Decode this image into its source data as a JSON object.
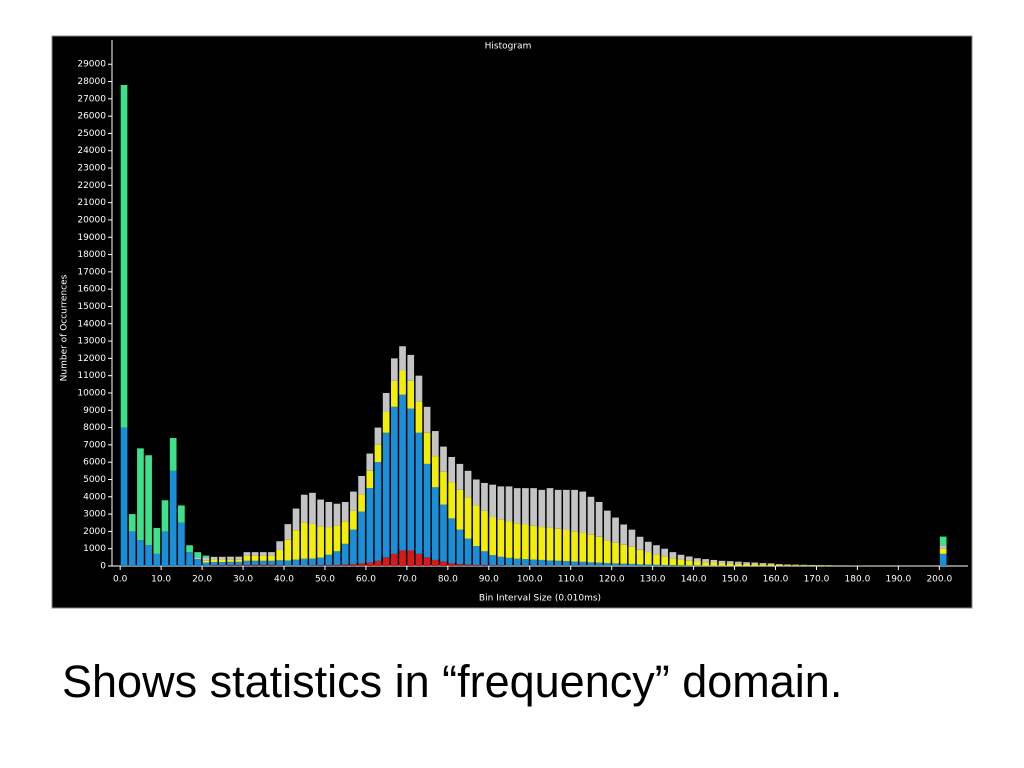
{
  "chart_data": {
    "type": "histogram",
    "title": "Histogram",
    "xlabel": "Bin Interval Size (0.010ms)",
    "ylabel": "Number of Occurrences",
    "bins": [
      0,
      2,
      4,
      6,
      8,
      10,
      12,
      14,
      16,
      18,
      20,
      22,
      24,
      26,
      28,
      30,
      32,
      34,
      36,
      38,
      40,
      42,
      44,
      46,
      48,
      50,
      52,
      54,
      56,
      58,
      60,
      62,
      64,
      66,
      68,
      70,
      72,
      74,
      76,
      78,
      80,
      82,
      84,
      86,
      88,
      90,
      92,
      94,
      96,
      98,
      100,
      102,
      104,
      106,
      108,
      110,
      112,
      114,
      116,
      118,
      120,
      122,
      124,
      126,
      128,
      130,
      132,
      134,
      136,
      138,
      140,
      142,
      144,
      146,
      148,
      150,
      152,
      154,
      156,
      158,
      160,
      162,
      164,
      166,
      168,
      170,
      172,
      174,
      176,
      178,
      180,
      182,
      184,
      186,
      188,
      190,
      192,
      194,
      196,
      198,
      200,
      202
    ],
    "series": [
      {
        "color": "#d41a1a",
        "values": [
          0,
          0,
          0,
          0,
          0,
          0,
          0,
          0,
          0,
          0,
          0,
          30,
          30,
          40,
          40,
          50,
          50,
          50,
          50,
          30,
          20,
          20,
          20,
          30,
          40,
          50,
          50,
          80,
          100,
          150,
          200,
          300,
          500,
          700,
          900,
          900,
          700,
          500,
          350,
          250,
          150,
          100,
          80,
          50,
          50,
          30,
          30,
          20,
          20,
          20,
          20,
          20,
          20,
          20,
          20,
          20,
          20,
          10,
          10,
          10,
          10,
          10,
          10,
          0,
          0,
          0,
          0,
          0,
          0,
          0,
          0,
          0,
          0,
          0,
          0,
          0,
          0,
          0,
          0,
          0,
          0,
          0,
          0,
          0,
          0,
          0,
          0,
          0,
          0,
          0,
          0,
          0,
          0,
          0,
          0,
          0,
          0,
          0,
          0,
          0,
          0
        ]
      },
      {
        "color": "#1a8fd8",
        "values": [
          8000,
          2000,
          1500,
          1200,
          700,
          2000,
          5500,
          2500,
          800,
          400,
          200,
          200,
          200,
          200,
          200,
          250,
          250,
          250,
          250,
          300,
          300,
          350,
          400,
          400,
          450,
          600,
          800,
          1200,
          2000,
          3000,
          4300,
          5700,
          7200,
          8500,
          9000,
          8200,
          7000,
          5400,
          4200,
          3300,
          2600,
          2000,
          1500,
          1100,
          800,
          600,
          500,
          450,
          400,
          380,
          350,
          330,
          300,
          280,
          260,
          240,
          220,
          200,
          180,
          160,
          140,
          120,
          110,
          90,
          80,
          70,
          60,
          50,
          40,
          30,
          30,
          20,
          20,
          20,
          10,
          10,
          10,
          10,
          10,
          10,
          0,
          0,
          0,
          0,
          0,
          0,
          0,
          0,
          0,
          0,
          0,
          0,
          0,
          0,
          0,
          0,
          0,
          0,
          0,
          0,
          700
        ]
      },
      {
        "color": "#f2ee0a",
        "values": [
          0,
          0,
          0,
          0,
          0,
          0,
          0,
          0,
          0,
          0,
          100,
          150,
          150,
          150,
          150,
          300,
          300,
          300,
          300,
          600,
          1200,
          1700,
          2100,
          2000,
          1800,
          1600,
          1500,
          1300,
          1100,
          1000,
          1000,
          1000,
          1200,
          1500,
          1400,
          1600,
          1800,
          1800,
          1800,
          1900,
          2100,
          2300,
          2400,
          2350,
          2350,
          2200,
          2150,
          2100,
          2050,
          2000,
          1950,
          1900,
          1900,
          1850,
          1800,
          1750,
          1700,
          1600,
          1500,
          1300,
          1200,
          1100,
          1000,
          850,
          700,
          600,
          500,
          400,
          330,
          280,
          230,
          200,
          180,
          150,
          140,
          120,
          110,
          100,
          85,
          75,
          60,
          50,
          45,
          40,
          35,
          30,
          25,
          20,
          20,
          15,
          15,
          10,
          10,
          10,
          10,
          5,
          5,
          5,
          5,
          5,
          300
        ]
      },
      {
        "color": "#c4c4c4",
        "values": [
          0,
          0,
          0,
          0,
          0,
          0,
          0,
          0,
          0,
          100,
          200,
          150,
          150,
          150,
          150,
          200,
          200,
          200,
          200,
          500,
          900,
          1250,
          1600,
          1800,
          1550,
          1450,
          1250,
          1120,
          1100,
          1050,
          1000,
          1000,
          1100,
          1300,
          1400,
          1500,
          1500,
          1500,
          1450,
          1450,
          1450,
          1500,
          1520,
          1500,
          1600,
          1870,
          1920,
          2030,
          2030,
          2100,
          2180,
          2150,
          2280,
          2250,
          2320,
          2390,
          2360,
          2190,
          2010,
          1730,
          1450,
          1170,
          980,
          750,
          620,
          530,
          440,
          350,
          280,
          240,
          190,
          180,
          150,
          130,
          130,
          120,
          100,
          90,
          75,
          65,
          50,
          40,
          35,
          30,
          25,
          20,
          20,
          15,
          15,
          10,
          10,
          10,
          5,
          5,
          5,
          5,
          5,
          5,
          5,
          5,
          200
        ]
      },
      {
        "color": "#3ee08a",
        "values": [
          19800,
          1000,
          5300,
          5200,
          1500,
          1800,
          1900,
          1000,
          400,
          300,
          100,
          0,
          0,
          0,
          0,
          0,
          0,
          0,
          0,
          0,
          0,
          0,
          0,
          0,
          0,
          0,
          0,
          0,
          0,
          0,
          0,
          0,
          0,
          0,
          0,
          0,
          0,
          0,
          0,
          0,
          0,
          0,
          0,
          0,
          0,
          0,
          0,
          0,
          0,
          0,
          0,
          0,
          0,
          0,
          0,
          0,
          0,
          0,
          0,
          0,
          0,
          0,
          0,
          0,
          0,
          0,
          0,
          0,
          0,
          0,
          0,
          0,
          0,
          0,
          0,
          0,
          0,
          0,
          0,
          0,
          0,
          0,
          0,
          0,
          0,
          0,
          0,
          0,
          0,
          0,
          0,
          0,
          0,
          0,
          0,
          0,
          0,
          0,
          0,
          0,
          500
        ]
      }
    ],
    "xlim": [
      -2,
      207
    ],
    "ylim": [
      0,
      30400
    ],
    "xticks": [
      {
        "value": 0,
        "label": "0.0"
      },
      {
        "value": 10,
        "label": "10.0"
      },
      {
        "value": 20,
        "label": "20.0"
      },
      {
        "value": 30,
        "label": "30.0"
      },
      {
        "value": 40,
        "label": "40.0"
      },
      {
        "value": 50,
        "label": "50.0"
      },
      {
        "value": 60,
        "label": "60.0"
      },
      {
        "value": 70,
        "label": "70.0"
      },
      {
        "value": 80,
        "label": "80.0"
      },
      {
        "value": 90,
        "label": "90.0"
      },
      {
        "value": 100,
        "label": "100.0"
      },
      {
        "value": 110,
        "label": "110.0"
      },
      {
        "value": 120,
        "label": "120.0"
      },
      {
        "value": 130,
        "label": "130.0"
      },
      {
        "value": 140,
        "label": "140.0"
      },
      {
        "value": 150,
        "label": "150.0"
      },
      {
        "value": 160,
        "label": "160.0"
      },
      {
        "value": 170,
        "label": "170.0"
      },
      {
        "value": 180,
        "label": "180.0"
      },
      {
        "value": 190,
        "label": "190.0"
      },
      {
        "value": 200,
        "label": "200.0"
      }
    ],
    "yticks": [
      0,
      1000,
      2000,
      3000,
      4000,
      5000,
      6000,
      7000,
      8000,
      9000,
      10000,
      11000,
      12000,
      13000,
      14000,
      15000,
      16000,
      17000,
      18000,
      19000,
      20000,
      21000,
      22000,
      23000,
      24000,
      25000,
      26000,
      27000,
      28000,
      29000
    ],
    "grid": false
  },
  "caption": "Shows statistics in “frequency” domain."
}
